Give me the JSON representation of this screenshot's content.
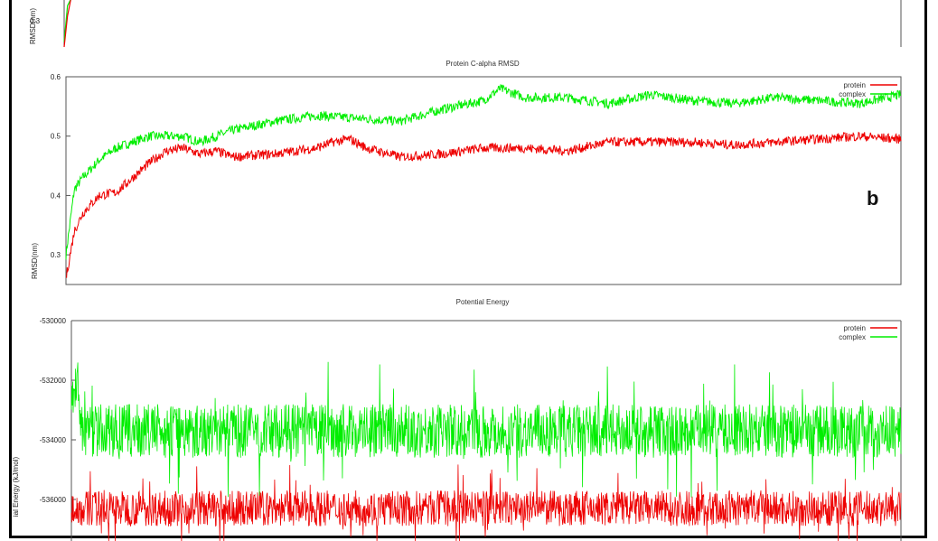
{
  "chart_data": [
    {
      "type": "line",
      "partial": "top-cropped",
      "title": "",
      "ylabel": "RMSD(nm)",
      "yticks": [
        0.3
      ],
      "ylim": [
        0.25,
        0.6
      ],
      "series": [
        {
          "name": "",
          "color": "#00ee00",
          "x": [
            0,
            0.004,
            0.008,
            0.012
          ],
          "values": [
            0.26,
            0.33,
            0.4,
            0.45
          ]
        },
        {
          "name": "",
          "color": "#ee0000",
          "x": [
            0,
            0.004,
            0.008,
            0.012
          ],
          "values": [
            0.25,
            0.31,
            0.37,
            0.42
          ]
        }
      ]
    },
    {
      "type": "line",
      "title": "Protein C-alpha RMSD",
      "ylabel": "RMSD(nm)",
      "yticks": [
        0.3,
        0.4,
        0.5,
        0.6
      ],
      "ylim": [
        0.25,
        0.6
      ],
      "xlim": [
        0,
        1
      ],
      "legend_position": "top-right",
      "annotation": "b",
      "series": [
        {
          "name": "protein",
          "color": "#ee0000",
          "x": [
            0,
            0.01,
            0.02,
            0.04,
            0.06,
            0.08,
            0.1,
            0.12,
            0.14,
            0.16,
            0.18,
            0.2,
            0.25,
            0.3,
            0.32,
            0.34,
            0.36,
            0.4,
            0.45,
            0.5,
            0.55,
            0.6,
            0.65,
            0.7,
            0.75,
            0.8,
            0.85,
            0.9,
            0.95,
            1.0
          ],
          "values": [
            0.26,
            0.34,
            0.37,
            0.4,
            0.405,
            0.43,
            0.455,
            0.475,
            0.48,
            0.47,
            0.475,
            0.465,
            0.47,
            0.48,
            0.49,
            0.495,
            0.48,
            0.465,
            0.47,
            0.48,
            0.48,
            0.475,
            0.49,
            0.49,
            0.49,
            0.485,
            0.49,
            0.495,
            0.5,
            0.495
          ]
        },
        {
          "name": "complex",
          "color": "#00ee00",
          "x": [
            0,
            0.01,
            0.02,
            0.04,
            0.06,
            0.08,
            0.1,
            0.12,
            0.14,
            0.16,
            0.2,
            0.25,
            0.3,
            0.35,
            0.4,
            0.45,
            0.5,
            0.52,
            0.55,
            0.6,
            0.65,
            0.7,
            0.75,
            0.8,
            0.85,
            0.9,
            0.95,
            1.0
          ],
          "values": [
            0.3,
            0.41,
            0.43,
            0.46,
            0.48,
            0.49,
            0.5,
            0.5,
            0.5,
            0.49,
            0.51,
            0.525,
            0.535,
            0.53,
            0.525,
            0.545,
            0.56,
            0.58,
            0.565,
            0.565,
            0.555,
            0.57,
            0.56,
            0.555,
            0.565,
            0.56,
            0.555,
            0.57
          ]
        }
      ]
    },
    {
      "type": "line",
      "partial": "bottom-cropped",
      "title": "Potential Energy",
      "ylabel": "Potential Energy (kJ/mol)",
      "ylabel_visible": "ial Energy (kJ/mol)",
      "yticks": [
        -530000,
        -532000,
        -534000,
        -536000
      ],
      "ylim": [
        -537000,
        -530000
      ],
      "xlim": [
        0,
        1
      ],
      "legend_position": "top-right",
      "series": [
        {
          "name": "protein",
          "color": "#ee0000",
          "mean": -536300,
          "spread": 600
        },
        {
          "name": "complex",
          "color": "#00ee00",
          "mean": -533700,
          "spread": 900
        }
      ]
    }
  ]
}
